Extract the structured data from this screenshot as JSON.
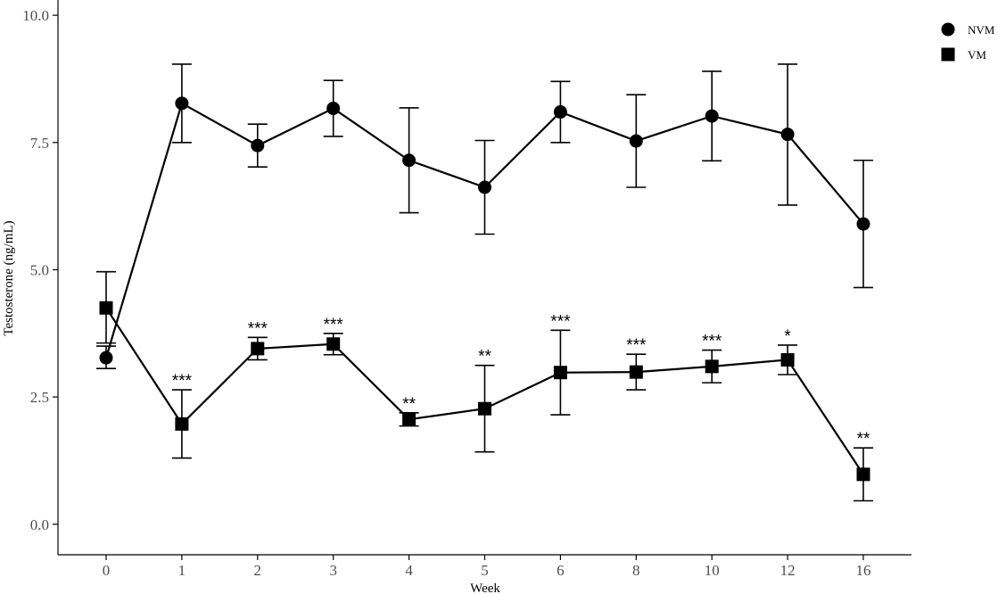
{
  "chart_data": {
    "type": "line",
    "xlabel": "Week",
    "ylabel": "Testosterone (ng/mL)",
    "categories": [
      "0",
      "1",
      "2",
      "3",
      "4",
      "5",
      "6",
      "8",
      "10",
      "12",
      "16"
    ],
    "ylim": [
      -0.6,
      10.3
    ],
    "yticks": [
      0.0,
      2.5,
      5.0,
      7.5,
      10.0
    ],
    "ytick_labels": [
      "0.0",
      "2.5",
      "5.0",
      "7.5",
      "10.0"
    ],
    "grid": false,
    "legend_position": "top-right",
    "series": [
      {
        "name": "NVM",
        "marker": "circle",
        "values": [
          3.27,
          8.27,
          7.44,
          8.17,
          7.15,
          6.62,
          8.1,
          7.53,
          8.02,
          7.66,
          5.9
        ],
        "err_low": [
          3.06,
          7.5,
          7.02,
          7.62,
          6.12,
          5.7,
          7.5,
          6.62,
          7.14,
          6.27,
          4.65
        ],
        "err_high": [
          3.5,
          9.04,
          7.86,
          8.72,
          8.18,
          7.54,
          8.7,
          8.44,
          8.9,
          9.04,
          7.15
        ]
      },
      {
        "name": "VM",
        "marker": "square",
        "values": [
          4.25,
          1.97,
          3.45,
          3.54,
          2.06,
          2.27,
          2.98,
          2.99,
          3.1,
          3.23,
          0.98
        ],
        "err_low": [
          3.56,
          1.3,
          3.23,
          3.33,
          1.93,
          1.42,
          2.15,
          2.64,
          2.78,
          2.94,
          0.46
        ],
        "err_high": [
          4.96,
          2.64,
          3.67,
          3.75,
          2.19,
          3.12,
          3.81,
          3.34,
          3.42,
          3.52,
          1.5
        ],
        "significance": [
          "",
          "***",
          "***",
          "***",
          "**",
          "**",
          "***",
          "***",
          "***",
          "*",
          "**"
        ]
      }
    ]
  }
}
